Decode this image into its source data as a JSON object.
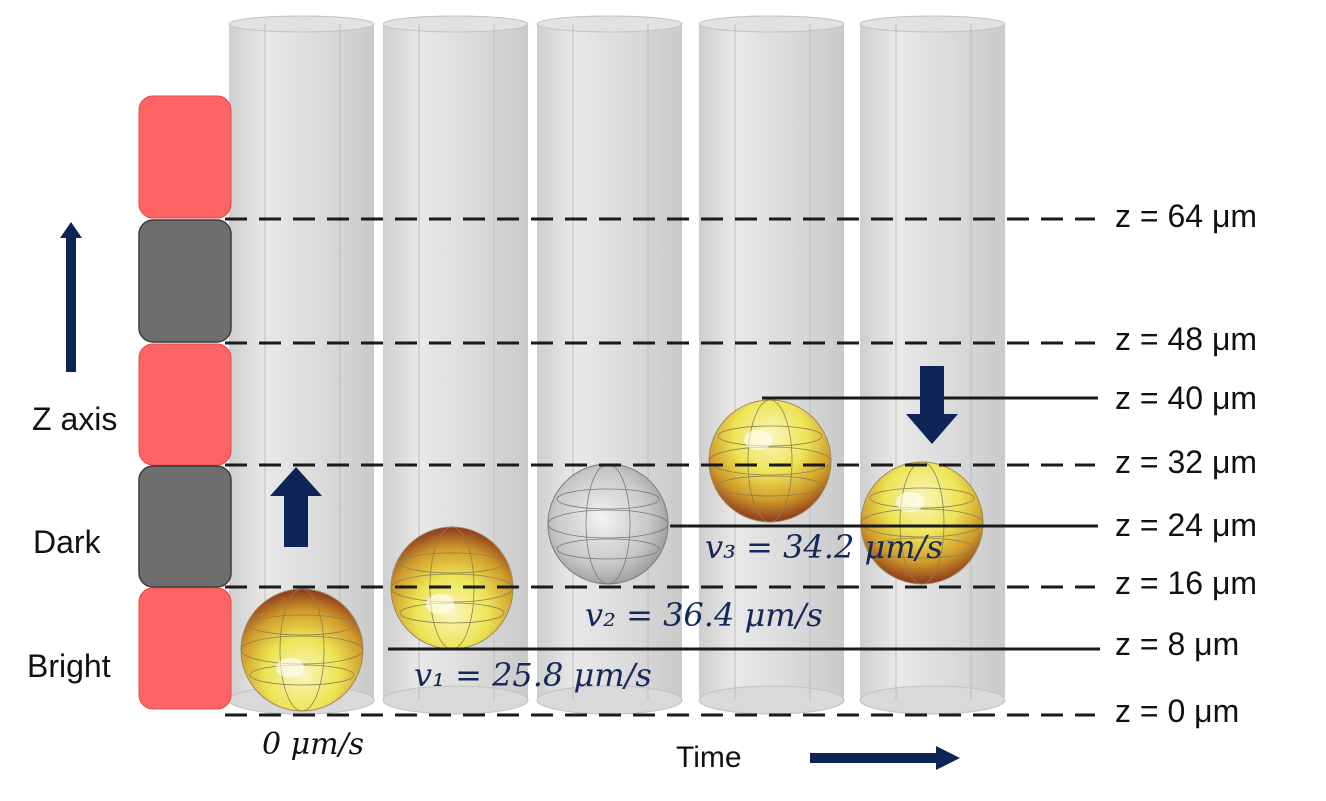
{
  "labels": {
    "z_axis": "Z axis",
    "dark": "Dark",
    "bright": "Bright",
    "time": "Time"
  },
  "z_levels": [
    {
      "label": "z = 64 μm",
      "value": 64,
      "style": "dashed"
    },
    {
      "label": "z = 48 μm",
      "value": 48,
      "style": "dashed"
    },
    {
      "label": "z = 40 μm",
      "value": 40,
      "style": "solid"
    },
    {
      "label": "z = 32 μm",
      "value": 32,
      "style": "dashed"
    },
    {
      "label": "z = 24 μm",
      "value": 24,
      "style": "solid"
    },
    {
      "label": "z = 16 μm",
      "value": 16,
      "style": "dashed"
    },
    {
      "label": "z = 8 μm",
      "value": 8,
      "style": "solid"
    },
    {
      "label": "z = 0 μm",
      "value": 0,
      "style": "dashed"
    }
  ],
  "velocities": {
    "v0": "0 μm/s",
    "v1": "v₁ = 25.8 μm/s",
    "v2": "v₂ = 36.4 μm/s",
    "v3": "v₃ = 34.2 μm/s"
  },
  "zones": [
    "bright",
    "dark",
    "bright",
    "dark",
    "bright"
  ],
  "colors": {
    "bright_zone": "#ff6464",
    "dark_zone": "#6e6e6e",
    "arrow": "#0e2456",
    "tube": "#cfcfcf",
    "velocity_text": "#14295a"
  }
}
